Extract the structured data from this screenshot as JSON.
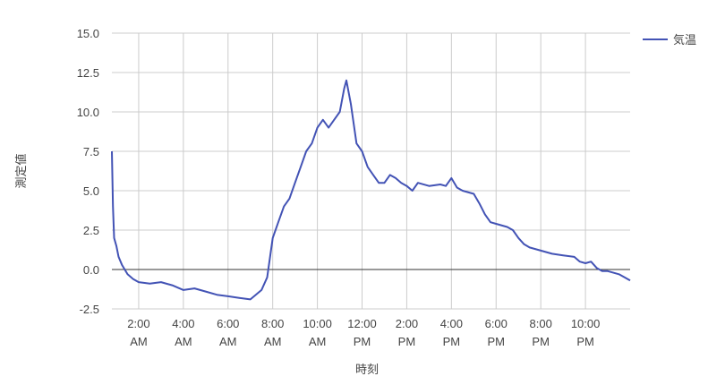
{
  "chart_data": {
    "type": "line",
    "x_label": "時刻",
    "y_label": "測定値",
    "xlim": [
      0.8,
      24
    ],
    "xticks": [
      {
        "value": 2,
        "label": "2:00 AM"
      },
      {
        "value": 4,
        "label": "4:00 AM"
      },
      {
        "value": 6,
        "label": "6:00 AM"
      },
      {
        "value": 8,
        "label": "8:00 AM"
      },
      {
        "value": 10,
        "label": "10:00 AM"
      },
      {
        "value": 12,
        "label": "12:00 PM"
      },
      {
        "value": 14,
        "label": "2:00 PM"
      },
      {
        "value": 16,
        "label": "4:00 PM"
      },
      {
        "value": 18,
        "label": "6:00 PM"
      },
      {
        "value": 20,
        "label": "8:00 PM"
      },
      {
        "value": 22,
        "label": "10:00 PM"
      }
    ],
    "ylim": [
      -2.5,
      15
    ],
    "yticks": [
      {
        "value": -2.5,
        "label": "-2.5"
      },
      {
        "value": 0,
        "label": "0.0"
      },
      {
        "value": 2.5,
        "label": "2.5"
      },
      {
        "value": 5,
        "label": "5.0"
      },
      {
        "value": 7.5,
        "label": "7.5"
      },
      {
        "value": 10,
        "label": "10.0"
      },
      {
        "value": 12.5,
        "label": "12.5"
      },
      {
        "value": 15,
        "label": "15.0"
      }
    ],
    "grid": true,
    "legend": "right",
    "x": [
      0.8,
      0.85,
      0.9,
      1.0,
      1.1,
      1.25,
      1.5,
      1.75,
      2.0,
      2.5,
      3.0,
      3.5,
      4.0,
      4.5,
      5.0,
      5.5,
      6.0,
      6.5,
      7.0,
      7.5,
      7.75,
      8.0,
      8.25,
      8.5,
      8.75,
      9.0,
      9.25,
      9.5,
      9.75,
      10.0,
      10.25,
      10.5,
      10.75,
      11.0,
      11.2,
      11.3,
      11.5,
      11.75,
      12.0,
      12.25,
      12.5,
      12.75,
      13.0,
      13.25,
      13.5,
      13.75,
      14.0,
      14.25,
      14.5,
      15.0,
      15.5,
      15.75,
      16.0,
      16.25,
      16.5,
      17.0,
      17.25,
      17.5,
      17.75,
      18.0,
      18.5,
      18.75,
      19.0,
      19.25,
      19.5,
      20.0,
      20.5,
      21.0,
      21.5,
      21.75,
      22.0,
      22.25,
      22.5,
      22.75,
      23.0,
      23.5,
      23.75,
      24.0
    ],
    "series": [
      {
        "name": "気温",
        "color": "#4353b5",
        "values": [
          7.5,
          4,
          2.0,
          1.5,
          0.8,
          0.3,
          -0.3,
          -0.6,
          -0.8,
          -0.9,
          -0.8,
          -1.0,
          -1.3,
          -1.2,
          -1.4,
          -1.6,
          -1.7,
          -1.8,
          -1.9,
          -1.3,
          -0.5,
          2.0,
          3.0,
          4.0,
          4.5,
          5.5,
          6.5,
          7.5,
          8.0,
          9.0,
          9.5,
          9.0,
          9.5,
          10.0,
          11.5,
          12.0,
          10.5,
          8.0,
          7.5,
          6.5,
          6.0,
          5.5,
          5.5,
          6.0,
          5.8,
          5.5,
          5.3,
          5.0,
          5.5,
          5.3,
          5.4,
          5.3,
          5.8,
          5.2,
          5.0,
          4.8,
          4.2,
          3.5,
          3.0,
          2.9,
          2.7,
          2.5,
          2.0,
          1.6,
          1.4,
          1.2,
          1.0,
          0.9,
          0.8,
          0.5,
          0.4,
          0.5,
          0.1,
          -0.1,
          -0.1,
          -0.3,
          -0.5,
          -0.7
        ]
      }
    ]
  }
}
